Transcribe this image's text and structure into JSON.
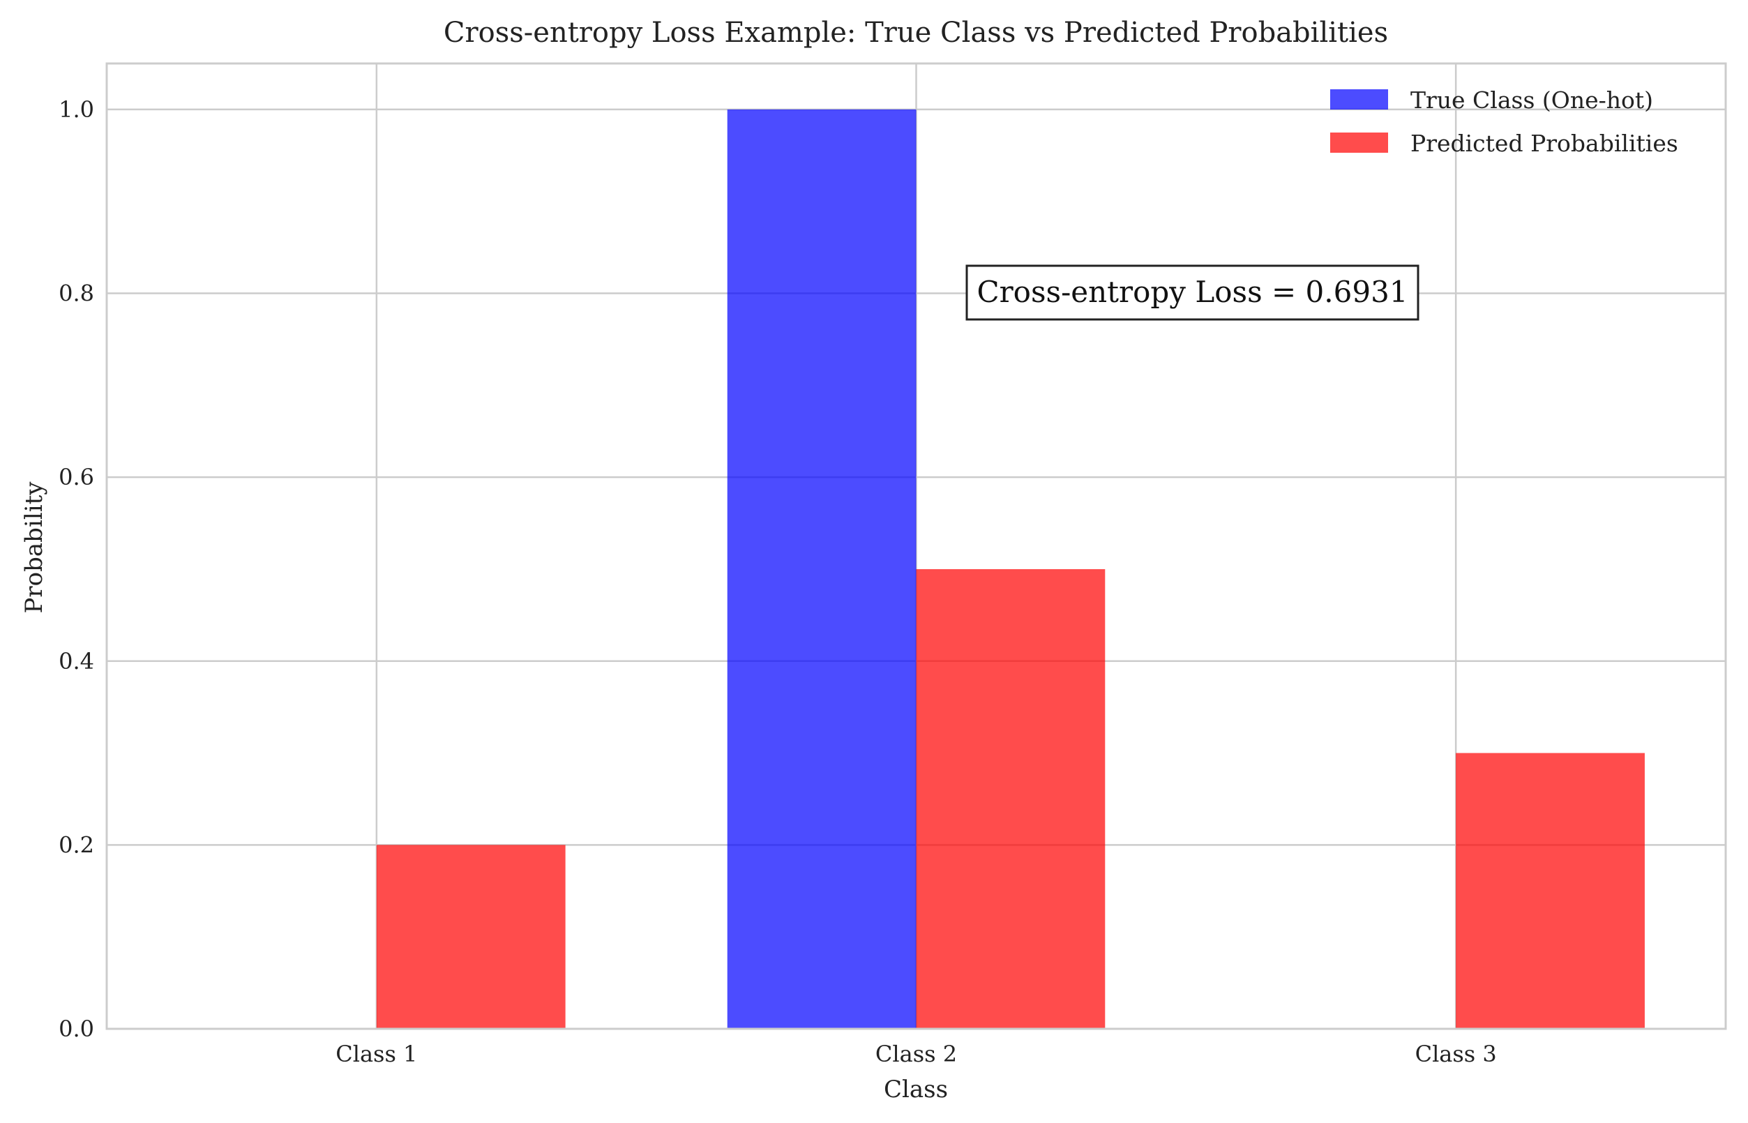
{
  "chart_data": {
    "type": "bar",
    "title": "Cross-entropy Loss Example: True Class vs Predicted Probabilities",
    "xlabel": "Class",
    "ylabel": "Probability",
    "categories": [
      "Class 1",
      "Class 2",
      "Class 3"
    ],
    "series": [
      {
        "name": "True Class (One-hot)",
        "values": [
          0,
          1,
          0
        ],
        "color": "#0000ff"
      },
      {
        "name": "Predicted Probabilities",
        "values": [
          0.2,
          0.5,
          0.3
        ],
        "color": "#ff0000"
      }
    ],
    "ylim": [
      0,
      1.05
    ],
    "yticks": [
      "0.0",
      "0.2",
      "0.4",
      "0.6",
      "0.8",
      "1.0"
    ],
    "grid": true,
    "legend_position": "top-right",
    "annotation": "Cross-entropy Loss = 0.6931"
  }
}
